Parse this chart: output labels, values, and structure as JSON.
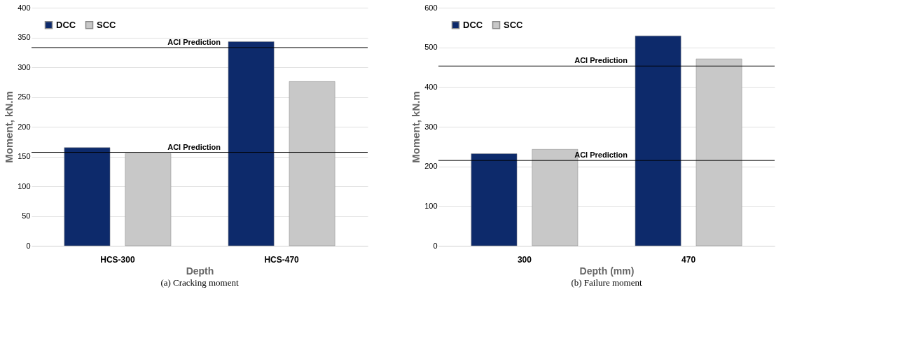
{
  "chart_data": [
    {
      "type": "bar",
      "title": "(a) Cracking moment",
      "xlabel": "Depth",
      "ylabel": "Moment, kN.m",
      "categories": [
        "HCS-300",
        "HCS-470"
      ],
      "series": [
        {
          "name": "DCC",
          "color": "#0d2a6b",
          "values": [
            165,
            343
          ]
        },
        {
          "name": "SCC",
          "color": "#c8c8c8",
          "values": [
            155,
            276
          ]
        }
      ],
      "ylim": [
        0,
        400
      ],
      "yticks": [
        0,
        50,
        100,
        150,
        200,
        250,
        300,
        350,
        400
      ],
      "grid": "y",
      "legend": "top left",
      "ref_lines": [
        {
          "axis": "y",
          "value": 157,
          "label": "ACI Prediction",
          "color": "#000000"
        },
        {
          "axis": "y",
          "value": 333,
          "label": "ACI Prediction",
          "color": "#000000"
        }
      ]
    },
    {
      "type": "bar",
      "title": "(b) Failure moment",
      "xlabel": "Depth (mm)",
      "ylabel": "Moment, kN.m",
      "categories": [
        "300",
        "470"
      ],
      "series": [
        {
          "name": "DCC",
          "color": "#0d2a6b",
          "values": [
            232,
            529
          ]
        },
        {
          "name": "SCC",
          "color": "#c8c8c8",
          "values": [
            243,
            471
          ]
        }
      ],
      "ylim": [
        0,
        600
      ],
      "yticks": [
        0,
        100,
        200,
        300,
        400,
        500,
        600
      ],
      "grid": "y",
      "legend": "top left",
      "ref_lines": [
        {
          "axis": "y",
          "value": 215,
          "label": "ACI Prediction",
          "color": "#000000"
        },
        {
          "axis": "y",
          "value": 453,
          "label": "ACI Prediction",
          "color": "#000000"
        }
      ]
    }
  ]
}
